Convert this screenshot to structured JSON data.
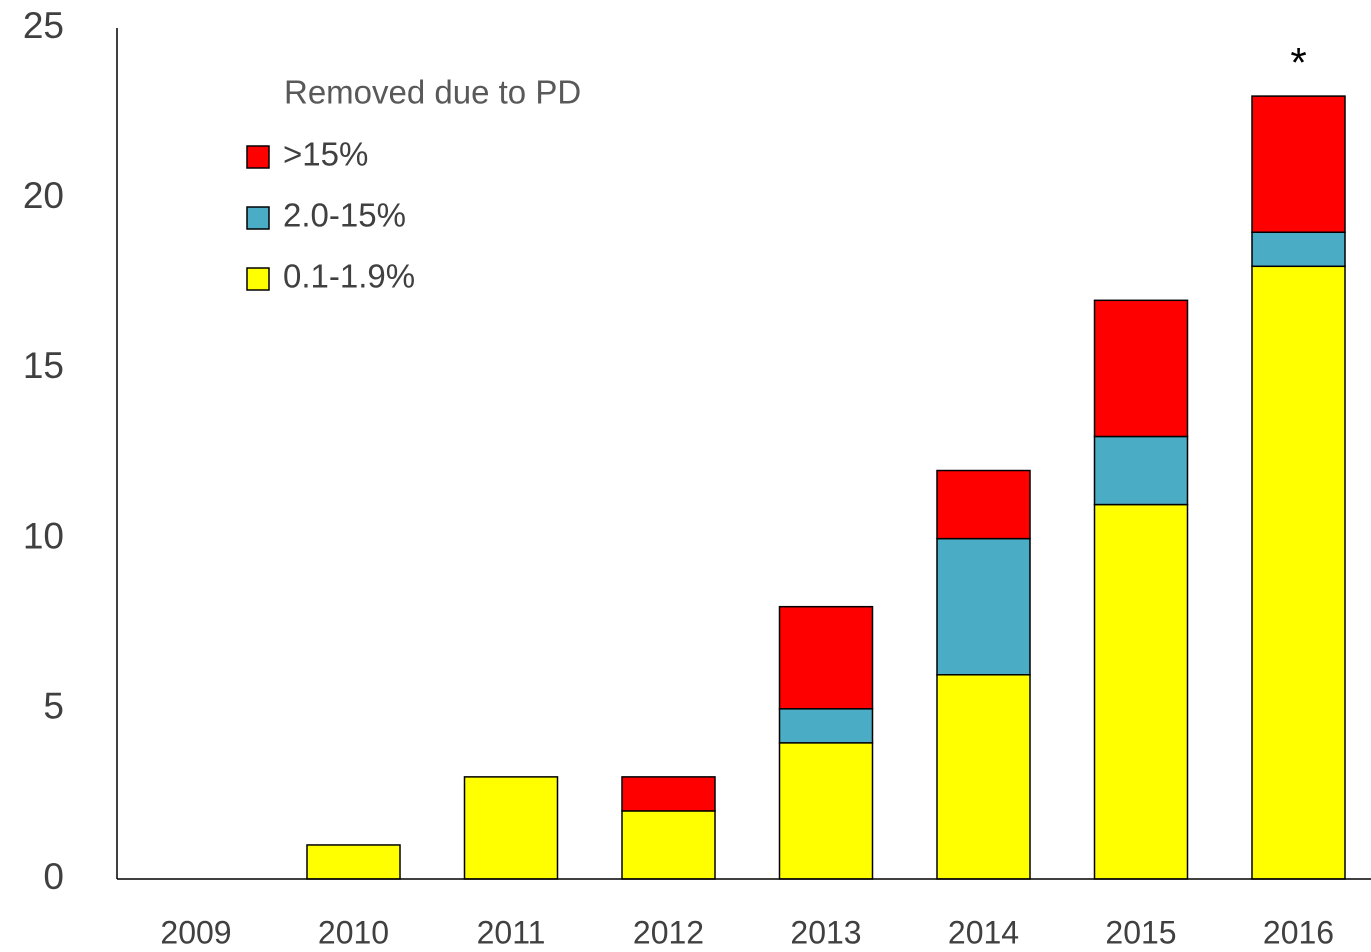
{
  "chart_data": {
    "type": "stacked_bar",
    "legend_title": "Removed due to PD",
    "annotation": "*",
    "categories": [
      "2009",
      "2010",
      "2011",
      "2012",
      "2013",
      "2014",
      "2015",
      "2016"
    ],
    "series": [
      {
        "name": "0.1-1.9%",
        "color": "#ffff00",
        "values": [
          0,
          1,
          3,
          2,
          4,
          6,
          11,
          18
        ]
      },
      {
        "name": "2.0-15%",
        "color": "#4bacc6",
        "values": [
          0,
          0,
          0,
          0,
          1,
          4,
          2,
          1
        ]
      },
      {
        "name": ">15%",
        "color": "#ff0000",
        "values": [
          0,
          0,
          0,
          1,
          3,
          2,
          4,
          4
        ]
      }
    ],
    "ylim": [
      0,
      25
    ],
    "yticks": [
      0,
      5,
      10,
      15,
      20,
      25
    ],
    "grid": false,
    "legend": "upper left"
  }
}
